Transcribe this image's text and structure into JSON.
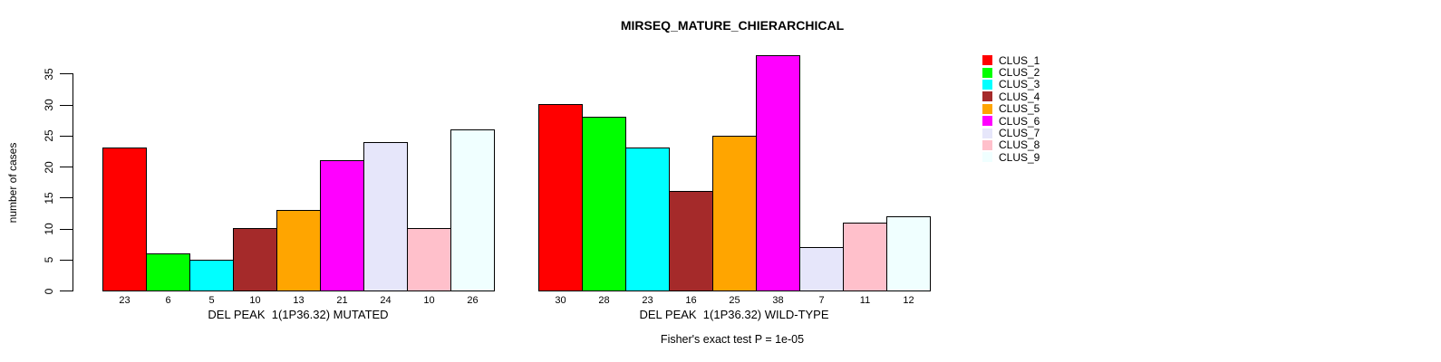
{
  "title": "MIRSEQ_MATURE_CHIERARCHICAL",
  "chart_data": {
    "type": "bar",
    "title": "MIRSEQ_MATURE_CHIERARCHICAL",
    "ylabel": "number of cases",
    "xlabel": "",
    "ylim": [
      0,
      38
    ],
    "yticks": [
      0,
      5,
      10,
      15,
      20,
      25,
      30,
      35
    ],
    "grid": false,
    "legend_position": "right",
    "categories": [
      "CLUS_1",
      "CLUS_2",
      "CLUS_3",
      "CLUS_4",
      "CLUS_5",
      "CLUS_6",
      "CLUS_7",
      "CLUS_8",
      "CLUS_9"
    ],
    "colors": [
      "#FF0000",
      "#00FF00",
      "#00FFFF",
      "#A52A2A",
      "#FFA500",
      "#FF00FF",
      "#E6E6FA",
      "#FFC0CB",
      "#F0FFFF"
    ],
    "groups": [
      {
        "xlabel": "DEL PEAK  1(1P36.32) MUTATED",
        "values": [
          23,
          6,
          5,
          10,
          13,
          21,
          24,
          10,
          26
        ]
      },
      {
        "xlabel": "DEL PEAK  1(1P36.32) WILD-TYPE",
        "values": [
          30,
          28,
          23,
          16,
          25,
          38,
          7,
          11,
          12
        ]
      }
    ],
    "annotation": "Fisher's exact test P = 1e-05"
  },
  "legend": {
    "items": [
      {
        "label": "CLUS_1",
        "color": "#FF0000"
      },
      {
        "label": "CLUS_2",
        "color": "#00FF00"
      },
      {
        "label": "CLUS_3",
        "color": "#00FFFF"
      },
      {
        "label": "CLUS_4",
        "color": "#A52A2A"
      },
      {
        "label": "CLUS_5",
        "color": "#FFA500"
      },
      {
        "label": "CLUS_6",
        "color": "#FF00FF"
      },
      {
        "label": "CLUS_7",
        "color": "#E6E6FA"
      },
      {
        "label": "CLUS_8",
        "color": "#FFC0CB"
      },
      {
        "label": "CLUS_9",
        "color": "#F0FFFF"
      }
    ]
  }
}
